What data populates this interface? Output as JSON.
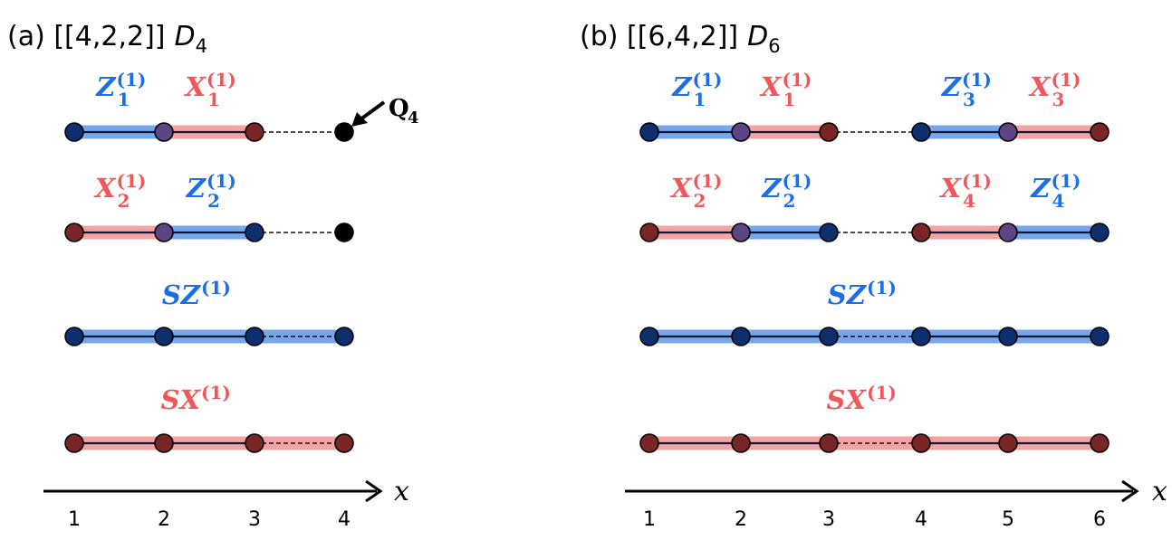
{
  "panels": [
    {
      "title": "(a) [[4,2,2]]",
      "code": "D",
      "code_sub": "4",
      "rows": [
        {
          "labels": [
            {
              "base": "Z",
              "sub": "1",
              "sup": "(1)"
            },
            {
              "base": "X",
              "sub": "1",
              "sup": "(1)"
            }
          ]
        },
        {
          "labels": [
            {
              "base": "X",
              "sub": "2",
              "sup": "(1)"
            },
            {
              "base": "Z",
              "sub": "2",
              "sup": "(1)"
            }
          ]
        },
        {
          "labels": [
            {
              "base": "SZ",
              "sup": "(1)"
            }
          ]
        },
        {
          "labels": [
            {
              "base": "SX",
              "sup": "(1)"
            }
          ]
        }
      ],
      "annotation": {
        "base": "Q",
        "sub": "4"
      },
      "ticks": [
        "1",
        "2",
        "3",
        "4"
      ],
      "axis_label": "x"
    },
    {
      "title": "(b) [[6,4,2]]",
      "code": "D",
      "code_sub": "6",
      "rows": [
        {
          "labels": [
            {
              "base": "Z",
              "sub": "1",
              "sup": "(1)"
            },
            {
              "base": "X",
              "sub": "1",
              "sup": "(1)"
            },
            {
              "base": "Z",
              "sub": "3",
              "sup": "(1)"
            },
            {
              "base": "X",
              "sub": "3",
              "sup": "(1)"
            }
          ]
        },
        {
          "labels": [
            {
              "base": "X",
              "sub": "2",
              "sup": "(1)"
            },
            {
              "base": "Z",
              "sub": "2",
              "sup": "(1)"
            },
            {
              "base": "X",
              "sub": "4",
              "sup": "(1)"
            },
            {
              "base": "Z",
              "sub": "4",
              "sup": "(1)"
            }
          ]
        },
        {
          "labels": [
            {
              "base": "SZ",
              "sup": "(1)"
            }
          ]
        },
        {
          "labels": [
            {
              "base": "SX",
              "sup": "(1)"
            }
          ]
        }
      ],
      "ticks": [
        "1",
        "2",
        "3",
        "4",
        "5",
        "6"
      ],
      "axis_label": "x"
    }
  ]
}
